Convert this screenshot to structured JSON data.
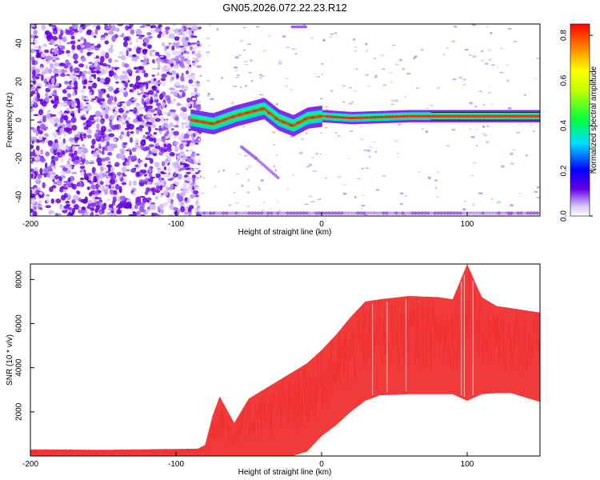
{
  "chart_data": [
    {
      "type": "heatmap",
      "title": "GN05.2026.072.22.23.R12",
      "xlabel": "Height of straight line (km)",
      "ylabel": "Frequency (Hz)",
      "xlim": [
        -200,
        150
      ],
      "ylim": [
        -50,
        50
      ],
      "x_ticks": [
        "-200",
        "-100",
        "0",
        "100"
      ],
      "y_ticks": [
        "-40",
        "-20",
        "0",
        "20",
        "40"
      ],
      "colorbar": {
        "label": "Normalized spectral amplitude",
        "range": [
          0,
          0.85
        ],
        "ticks": [
          "0.0",
          "0.2",
          "0.4",
          "0.6",
          "0.8"
        ]
      },
      "features": {
        "noise_region_x": [
          -200,
          -90
        ],
        "signal_line": [
          {
            "x": -90,
            "y": 0
          },
          {
            "x": -75,
            "y": -2
          },
          {
            "x": -60,
            "y": 2
          },
          {
            "x": -50,
            "y": 4
          },
          {
            "x": -40,
            "y": 6
          },
          {
            "x": -30,
            "y": 0
          },
          {
            "x": -20,
            "y": -3
          },
          {
            "x": -10,
            "y": 1
          },
          {
            "x": 0,
            "y": 2
          },
          {
            "x": 20,
            "y": 1
          },
          {
            "x": 60,
            "y": 2
          },
          {
            "x": 100,
            "y": 2
          },
          {
            "x": 150,
            "y": 2
          }
        ],
        "secondary_trace": [
          {
            "x": -55,
            "y": -14
          },
          {
            "x": -45,
            "y": -20
          },
          {
            "x": -30,
            "y": -30
          }
        ]
      }
    },
    {
      "type": "area",
      "title": "",
      "xlabel": "Height of straight line (km)",
      "ylabel": "SNR (10 * v/v)",
      "xlim": [
        -200,
        150
      ],
      "ylim": [
        0,
        8700
      ],
      "x_ticks": [
        "-200",
        "-100",
        "0",
        "100"
      ],
      "y_ticks": [
        "2000",
        "4000",
        "6000",
        "8000"
      ],
      "color": "#f03030",
      "series": [
        {
          "name": "SNR",
          "x": [
            -200,
            -150,
            -100,
            -85,
            -80,
            -75,
            -70,
            -60,
            -50,
            -40,
            -30,
            -20,
            -10,
            0,
            10,
            20,
            30,
            40,
            60,
            80,
            90,
            100,
            110,
            120,
            130,
            150
          ],
          "lower": [
            0,
            0,
            0,
            0,
            0,
            0,
            0,
            0,
            0,
            0,
            0,
            0,
            200,
            900,
            1400,
            2000,
            2500,
            2750,
            2800,
            2800,
            2800,
            2500,
            2800,
            2850,
            2850,
            2450
          ],
          "upper": [
            300,
            280,
            320,
            330,
            500,
            1800,
            2700,
            1500,
            2600,
            3000,
            3400,
            3800,
            4200,
            4800,
            5500,
            6300,
            7000,
            7100,
            7250,
            7200,
            7100,
            8700,
            7200,
            6800,
            6700,
            6500
          ]
        }
      ]
    }
  ]
}
